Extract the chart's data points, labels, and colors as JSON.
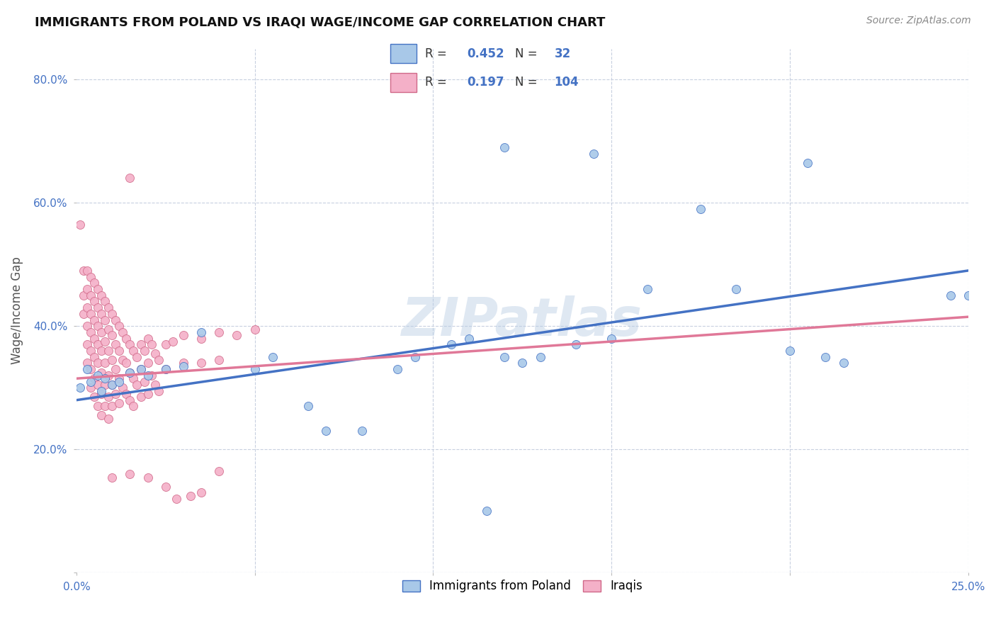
{
  "title": "IMMIGRANTS FROM POLAND VS IRAQI WAGE/INCOME GAP CORRELATION CHART",
  "source": "Source: ZipAtlas.com",
  "ylabel": "Wage/Income Gap",
  "xlim": [
    0.0,
    0.25
  ],
  "ylim": [
    0.0,
    0.85
  ],
  "xticks": [
    0.0,
    0.05,
    0.1,
    0.15,
    0.2,
    0.25
  ],
  "yticks": [
    0.0,
    0.2,
    0.4,
    0.6,
    0.8
  ],
  "poland_color": "#a8c8e8",
  "poland_edge": "#4472c4",
  "iraq_color": "#f4b0c8",
  "iraq_edge": "#d06888",
  "trend_poland_color": "#4472c4",
  "trend_iraq_color": "#e07898",
  "watermark": "ZIPatlas",
  "poland_points": [
    [
      0.001,
      0.3
    ],
    [
      0.003,
      0.33
    ],
    [
      0.004,
      0.31
    ],
    [
      0.006,
      0.32
    ],
    [
      0.007,
      0.295
    ],
    [
      0.008,
      0.315
    ],
    [
      0.01,
      0.305
    ],
    [
      0.012,
      0.31
    ],
    [
      0.015,
      0.325
    ],
    [
      0.018,
      0.33
    ],
    [
      0.02,
      0.32
    ],
    [
      0.025,
      0.33
    ],
    [
      0.03,
      0.335
    ],
    [
      0.035,
      0.39
    ],
    [
      0.05,
      0.33
    ],
    [
      0.055,
      0.35
    ],
    [
      0.065,
      0.27
    ],
    [
      0.07,
      0.23
    ],
    [
      0.08,
      0.23
    ],
    [
      0.09,
      0.33
    ],
    [
      0.095,
      0.35
    ],
    [
      0.105,
      0.37
    ],
    [
      0.11,
      0.38
    ],
    [
      0.12,
      0.35
    ],
    [
      0.125,
      0.34
    ],
    [
      0.13,
      0.35
    ],
    [
      0.14,
      0.37
    ],
    [
      0.15,
      0.38
    ],
    [
      0.16,
      0.46
    ],
    [
      0.115,
      0.1
    ],
    [
      0.12,
      0.69
    ],
    [
      0.145,
      0.68
    ],
    [
      0.175,
      0.59
    ],
    [
      0.205,
      0.665
    ],
    [
      0.185,
      0.46
    ],
    [
      0.2,
      0.36
    ],
    [
      0.21,
      0.35
    ],
    [
      0.215,
      0.34
    ],
    [
      0.245,
      0.45
    ],
    [
      0.25,
      0.45
    ]
  ],
  "iraq_points": [
    [
      0.001,
      0.565
    ],
    [
      0.002,
      0.49
    ],
    [
      0.002,
      0.45
    ],
    [
      0.002,
      0.42
    ],
    [
      0.003,
      0.49
    ],
    [
      0.003,
      0.46
    ],
    [
      0.003,
      0.43
    ],
    [
      0.003,
      0.4
    ],
    [
      0.003,
      0.37
    ],
    [
      0.003,
      0.34
    ],
    [
      0.004,
      0.48
    ],
    [
      0.004,
      0.45
    ],
    [
      0.004,
      0.42
    ],
    [
      0.004,
      0.39
    ],
    [
      0.004,
      0.36
    ],
    [
      0.004,
      0.33
    ],
    [
      0.004,
      0.3
    ],
    [
      0.005,
      0.47
    ],
    [
      0.005,
      0.44
    ],
    [
      0.005,
      0.41
    ],
    [
      0.005,
      0.38
    ],
    [
      0.005,
      0.35
    ],
    [
      0.005,
      0.315
    ],
    [
      0.005,
      0.285
    ],
    [
      0.006,
      0.46
    ],
    [
      0.006,
      0.43
    ],
    [
      0.006,
      0.4
    ],
    [
      0.006,
      0.37
    ],
    [
      0.006,
      0.34
    ],
    [
      0.006,
      0.305
    ],
    [
      0.006,
      0.27
    ],
    [
      0.007,
      0.45
    ],
    [
      0.007,
      0.42
    ],
    [
      0.007,
      0.39
    ],
    [
      0.007,
      0.36
    ],
    [
      0.007,
      0.325
    ],
    [
      0.007,
      0.29
    ],
    [
      0.007,
      0.255
    ],
    [
      0.008,
      0.44
    ],
    [
      0.008,
      0.41
    ],
    [
      0.008,
      0.375
    ],
    [
      0.008,
      0.34
    ],
    [
      0.008,
      0.305
    ],
    [
      0.008,
      0.27
    ],
    [
      0.009,
      0.43
    ],
    [
      0.009,
      0.395
    ],
    [
      0.009,
      0.36
    ],
    [
      0.009,
      0.32
    ],
    [
      0.009,
      0.285
    ],
    [
      0.009,
      0.25
    ],
    [
      0.01,
      0.42
    ],
    [
      0.01,
      0.385
    ],
    [
      0.01,
      0.345
    ],
    [
      0.01,
      0.305
    ],
    [
      0.01,
      0.27
    ],
    [
      0.011,
      0.41
    ],
    [
      0.011,
      0.37
    ],
    [
      0.011,
      0.33
    ],
    [
      0.011,
      0.29
    ],
    [
      0.012,
      0.4
    ],
    [
      0.012,
      0.36
    ],
    [
      0.012,
      0.315
    ],
    [
      0.012,
      0.275
    ],
    [
      0.013,
      0.39
    ],
    [
      0.013,
      0.345
    ],
    [
      0.013,
      0.3
    ],
    [
      0.014,
      0.38
    ],
    [
      0.014,
      0.34
    ],
    [
      0.014,
      0.29
    ],
    [
      0.015,
      0.64
    ],
    [
      0.015,
      0.37
    ],
    [
      0.015,
      0.325
    ],
    [
      0.015,
      0.28
    ],
    [
      0.016,
      0.36
    ],
    [
      0.016,
      0.315
    ],
    [
      0.016,
      0.27
    ],
    [
      0.017,
      0.35
    ],
    [
      0.017,
      0.305
    ],
    [
      0.018,
      0.37
    ],
    [
      0.018,
      0.33
    ],
    [
      0.018,
      0.285
    ],
    [
      0.019,
      0.36
    ],
    [
      0.019,
      0.31
    ],
    [
      0.02,
      0.38
    ],
    [
      0.02,
      0.34
    ],
    [
      0.02,
      0.29
    ],
    [
      0.021,
      0.37
    ],
    [
      0.021,
      0.32
    ],
    [
      0.022,
      0.355
    ],
    [
      0.022,
      0.305
    ],
    [
      0.023,
      0.345
    ],
    [
      0.023,
      0.295
    ],
    [
      0.025,
      0.37
    ],
    [
      0.025,
      0.33
    ],
    [
      0.027,
      0.375
    ],
    [
      0.03,
      0.385
    ],
    [
      0.03,
      0.34
    ],
    [
      0.035,
      0.38
    ],
    [
      0.035,
      0.34
    ],
    [
      0.04,
      0.39
    ],
    [
      0.04,
      0.345
    ],
    [
      0.045,
      0.385
    ],
    [
      0.05,
      0.395
    ],
    [
      0.02,
      0.155
    ],
    [
      0.025,
      0.14
    ],
    [
      0.028,
      0.12
    ],
    [
      0.032,
      0.125
    ],
    [
      0.035,
      0.13
    ],
    [
      0.04,
      0.165
    ],
    [
      0.015,
      0.16
    ],
    [
      0.01,
      0.155
    ]
  ]
}
